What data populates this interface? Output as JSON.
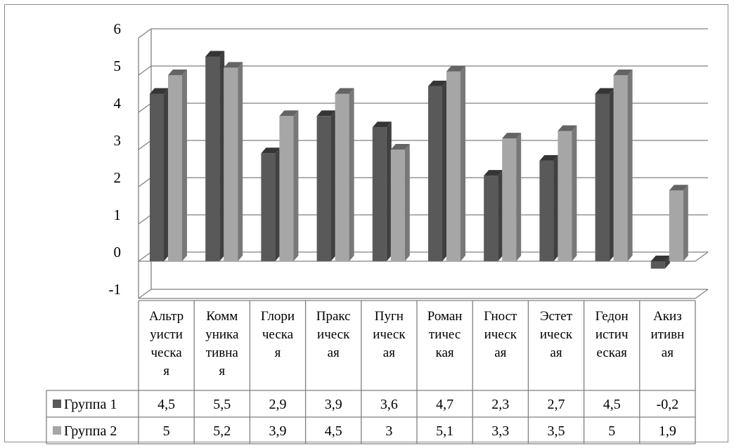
{
  "chart_data": {
    "type": "bar",
    "categories_lines": [
      [
        "Альтр",
        "уисти",
        "ческа",
        "я"
      ],
      [
        "Комм",
        "уника",
        "тивна",
        "я"
      ],
      [
        "Глори",
        "ческа",
        "я"
      ],
      [
        "Пракс",
        "ическ",
        "ая"
      ],
      [
        "Пугн",
        "ическ",
        "ая"
      ],
      [
        "Роман",
        "тичес",
        "кая"
      ],
      [
        "Гност",
        "ическ",
        "ая"
      ],
      [
        "Эстет",
        "ическ",
        "ая"
      ],
      [
        "Гедон",
        "истич",
        "еская"
      ],
      [
        "Акиз",
        "итивн",
        "ая"
      ]
    ],
    "series": [
      {
        "name": "Группа 1",
        "color": "#595959",
        "values": [
          4.5,
          5.5,
          2.9,
          3.9,
          3.6,
          4.7,
          2.3,
          2.7,
          4.5,
          -0.2
        ],
        "labels": [
          "4,5",
          "5,5",
          "2,9",
          "3,9",
          "3,6",
          "4,7",
          "2,3",
          "2,7",
          "4,5",
          "-0,2"
        ]
      },
      {
        "name": "Группа 2",
        "color": "#a6a6a6",
        "values": [
          5,
          5.2,
          3.9,
          4.5,
          3,
          5.1,
          3.3,
          3.5,
          5,
          1.9
        ],
        "labels": [
          "5",
          "5,2",
          "3,9",
          "4,5",
          "3",
          "5,1",
          "3,3",
          "3,5",
          "5",
          "1,9"
        ]
      }
    ],
    "y_ticks": [
      "-1",
      "0",
      "1",
      "2",
      "3",
      "4",
      "5",
      "6"
    ],
    "ylim": [
      -1,
      6
    ],
    "grid": true,
    "legend": "data-table"
  }
}
